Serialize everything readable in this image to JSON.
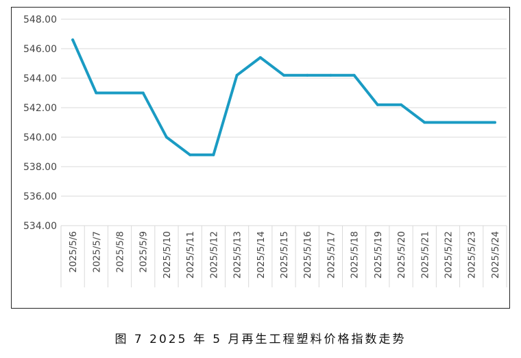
{
  "caption": "图 7  2025 年 5 月再生工程塑料价格指数走势",
  "chart_data": {
    "type": "line",
    "title": "",
    "xlabel": "",
    "ylabel": "",
    "categories": [
      "2025/5/6",
      "2025/5/7",
      "2025/5/8",
      "2025/5/9",
      "2025/5/10",
      "2025/5/11",
      "2025/5/12",
      "2025/5/13",
      "2025/5/14",
      "2025/5/15",
      "2025/5/16",
      "2025/5/17",
      "2025/5/18",
      "2025/5/19",
      "2025/5/20",
      "2025/5/21",
      "2025/5/22",
      "2025/5/23",
      "2025/5/24"
    ],
    "values": [
      546.6,
      543.0,
      543.0,
      543.0,
      540.0,
      538.8,
      538.8,
      544.2,
      545.4,
      544.2,
      544.2,
      544.2,
      544.2,
      542.2,
      542.2,
      541.0,
      541.0,
      541.0,
      541.0
    ],
    "ylim": [
      534,
      548
    ],
    "yticks": [
      "534.00",
      "536.00",
      "538.00",
      "540.00",
      "542.00",
      "544.00",
      "546.00",
      "548.00"
    ],
    "grid": "horizontal",
    "legend": "none",
    "line_color": "#1A9BC3",
    "grid_color": "#d9d9d9"
  }
}
